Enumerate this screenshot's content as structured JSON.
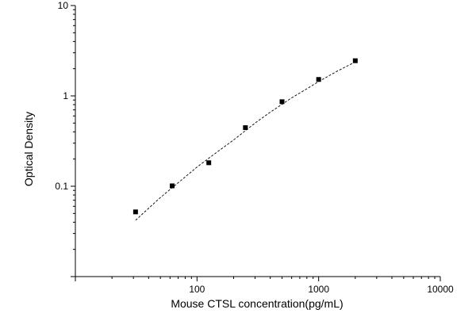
{
  "chart_data": {
    "type": "scatter",
    "title": "",
    "xlabel": "Mouse CTSL concentration(pg/mL)",
    "ylabel": "Optical Density",
    "x_scale": "log",
    "y_scale": "log",
    "xlim": [
      10,
      10000
    ],
    "ylim": [
      0.01,
      10
    ],
    "x_tick_labels": [
      "100",
      "1000",
      "10000"
    ],
    "y_tick_labels": [
      "0.1",
      "1",
      "10"
    ],
    "grid": false,
    "series": [
      {
        "marker": "square",
        "color": "#000000",
        "x": [
          31.25,
          62.5,
          125,
          250,
          500,
          1000,
          2000
        ],
        "y": [
          0.052,
          0.101,
          0.182,
          0.445,
          0.862,
          1.52,
          2.45
        ]
      }
    ],
    "fit_curve": {
      "style": "dashed",
      "color": "#000000",
      "x": [
        31.25,
        50,
        75,
        100,
        150,
        200,
        300,
        400,
        600,
        800,
        1000,
        1400,
        2000
      ],
      "y": [
        0.042,
        0.075,
        0.118,
        0.163,
        0.245,
        0.325,
        0.5,
        0.66,
        0.95,
        1.2,
        1.44,
        1.86,
        2.38
      ]
    }
  }
}
